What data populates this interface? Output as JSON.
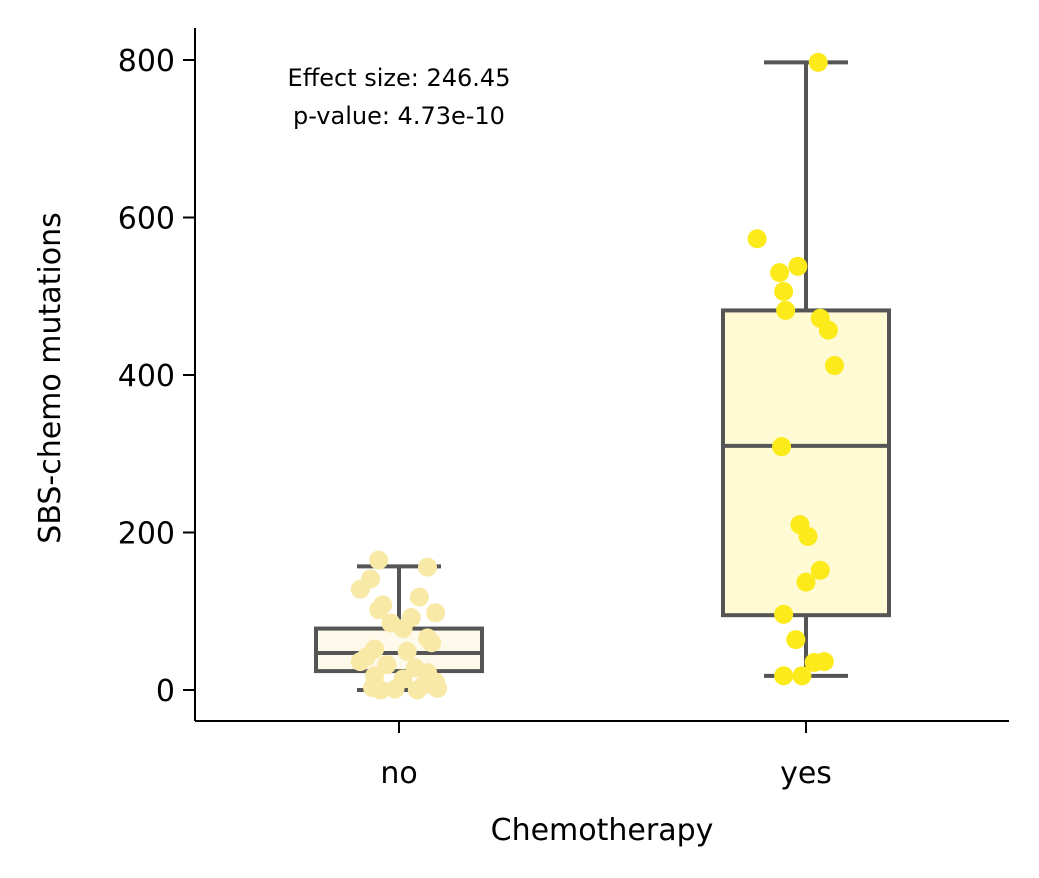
{
  "chart_data": {
    "type": "box",
    "xlabel": "Chemotherapy",
    "ylabel": "SBS-chemo mutations",
    "ylim": [
      -38,
      838
    ],
    "yticks": [
      0,
      200,
      400,
      600,
      800
    ],
    "annotation": {
      "line1": "Effect size: 246.45",
      "line2": "p-value: 4.73e-10"
    },
    "groups": [
      {
        "category": "no",
        "box_fill": "#fefaeb",
        "point_color": "#f8e9a6",
        "whisker_low": 0,
        "q1": 24,
        "median": 47,
        "q3": 78,
        "whisker_high": 157,
        "points": [
          {
            "offset": -0.05,
            "y": 165
          },
          {
            "offset": 0.07,
            "y": 156
          },
          {
            "offset": -0.07,
            "y": 141
          },
          {
            "offset": -0.095,
            "y": 128
          },
          {
            "offset": 0.05,
            "y": 118
          },
          {
            "offset": -0.04,
            "y": 108
          },
          {
            "offset": -0.05,
            "y": 102
          },
          {
            "offset": 0.09,
            "y": 98
          },
          {
            "offset": 0.03,
            "y": 92
          },
          {
            "offset": -0.02,
            "y": 85
          },
          {
            "offset": 0.01,
            "y": 78
          },
          {
            "offset": 0.07,
            "y": 66
          },
          {
            "offset": 0.08,
            "y": 60
          },
          {
            "offset": -0.06,
            "y": 52
          },
          {
            "offset": 0.02,
            "y": 49
          },
          {
            "offset": -0.08,
            "y": 42
          },
          {
            "offset": -0.095,
            "y": 36
          },
          {
            "offset": -0.03,
            "y": 32
          },
          {
            "offset": 0.04,
            "y": 28
          },
          {
            "offset": 0.07,
            "y": 22
          },
          {
            "offset": -0.06,
            "y": 18
          },
          {
            "offset": 0.01,
            "y": 14
          },
          {
            "offset": 0.09,
            "y": 10
          },
          {
            "offset": 0.06,
            "y": 6
          },
          {
            "offset": -0.065,
            "y": 3
          },
          {
            "offset": 0.095,
            "y": 2
          },
          {
            "offset": -0.045,
            "y": 0
          },
          {
            "offset": 0.045,
            "y": 0
          },
          {
            "offset": -0.01,
            "y": 1
          }
        ]
      },
      {
        "category": "yes",
        "box_fill": "#fefad3",
        "point_color": "#fcea1a",
        "whisker_low": 18,
        "q1": 95,
        "median": 310,
        "q3": 482,
        "whisker_high": 797,
        "points": [
          {
            "offset": 0.03,
            "y": 797
          },
          {
            "offset": -0.12,
            "y": 573
          },
          {
            "offset": -0.02,
            "y": 538
          },
          {
            "offset": -0.065,
            "y": 530
          },
          {
            "offset": -0.055,
            "y": 506
          },
          {
            "offset": -0.05,
            "y": 482
          },
          {
            "offset": 0.035,
            "y": 472
          },
          {
            "offset": 0.055,
            "y": 457
          },
          {
            "offset": 0.07,
            "y": 412
          },
          {
            "offset": -0.06,
            "y": 309
          },
          {
            "offset": -0.015,
            "y": 210
          },
          {
            "offset": 0.005,
            "y": 195
          },
          {
            "offset": 0.035,
            "y": 152
          },
          {
            "offset": 0.0,
            "y": 137
          },
          {
            "offset": -0.055,
            "y": 96
          },
          {
            "offset": -0.025,
            "y": 64
          },
          {
            "offset": 0.045,
            "y": 36
          },
          {
            "offset": 0.02,
            "y": 35
          },
          {
            "offset": -0.055,
            "y": 18
          },
          {
            "offset": -0.01,
            "y": 18
          }
        ]
      }
    ],
    "colors": {
      "box_edge": "#555555",
      "axis": "#000000"
    }
  }
}
